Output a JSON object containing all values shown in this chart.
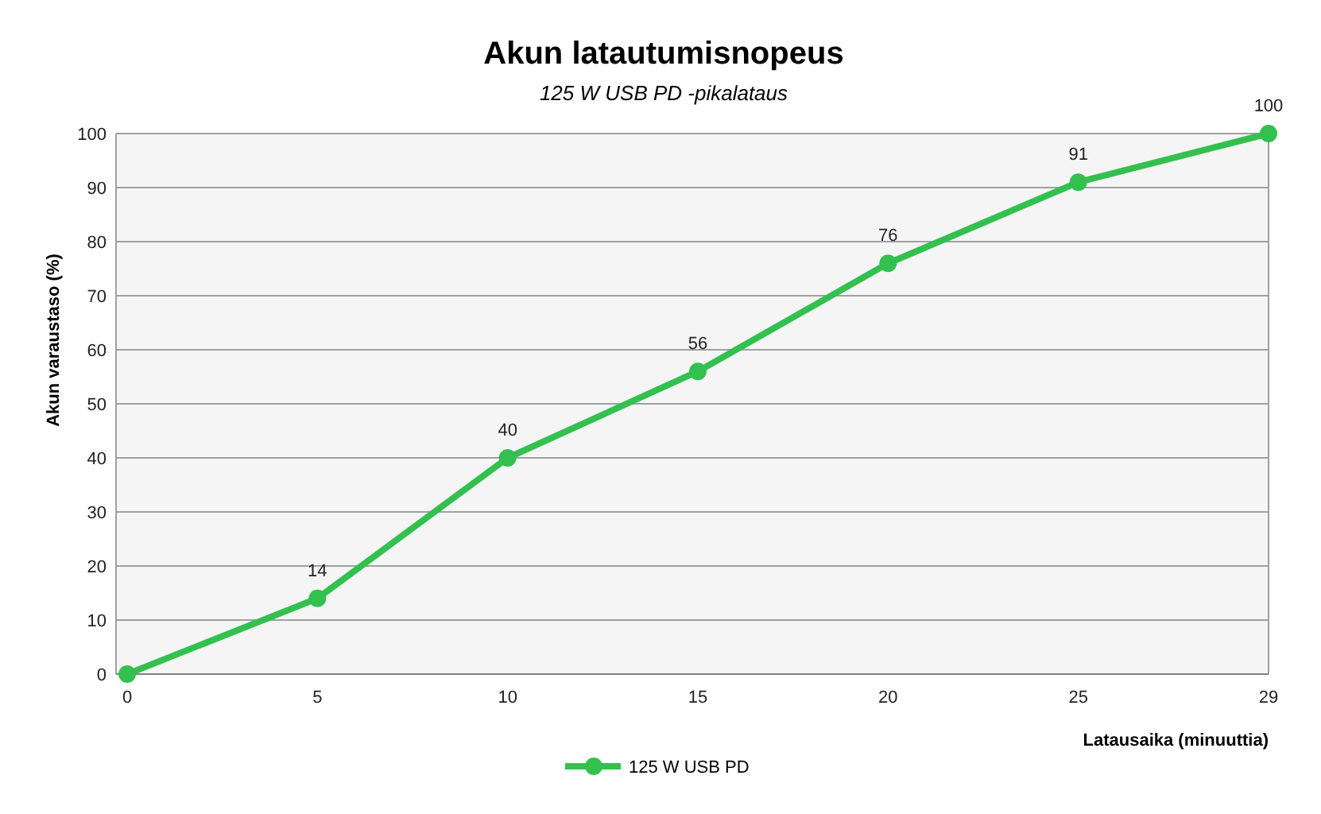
{
  "chart_data": {
    "type": "line",
    "title": "Akun latautumisnopeus",
    "subtitle": "125 W USB PD -pikalataus",
    "xlabel": "Latausaika  (minuuttia)",
    "ylabel": "Akun varaustaso  (%)",
    "categories": [
      "0",
      "5",
      "10",
      "15",
      "20",
      "25",
      "29"
    ],
    "series": [
      {
        "name": "125 W USB PD",
        "color": "#33c04f",
        "values": [
          0,
          14,
          40,
          56,
          76,
          91,
          100
        ],
        "value_labels": [
          null,
          "14",
          "40",
          "56",
          "76",
          "91",
          "100"
        ]
      }
    ],
    "ylim": [
      0,
      100
    ],
    "yticks": [
      0,
      10,
      20,
      30,
      40,
      50,
      60,
      70,
      80,
      90,
      100
    ],
    "grid": "y",
    "legend": "bottom",
    "marker": "circle",
    "line_style": "solid"
  }
}
